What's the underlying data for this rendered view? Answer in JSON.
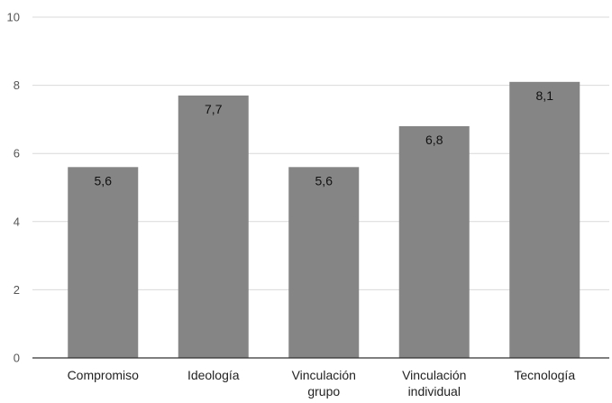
{
  "chart_data": {
    "type": "bar",
    "categories": [
      "Compromiso",
      "Ideología",
      "Vinculación grupo",
      "Vinculación individual",
      "Tecnología"
    ],
    "category_label_lines": [
      [
        "Compromiso"
      ],
      [
        "Ideología"
      ],
      [
        "Vinculación",
        "grupo"
      ],
      [
        "Vinculación",
        "individual"
      ],
      [
        "Tecnología"
      ]
    ],
    "values": [
      5.6,
      7.7,
      5.6,
      6.8,
      8.1
    ],
    "data_labels": [
      "5,6",
      "7,7",
      "5,6",
      "6,8",
      "8,1"
    ],
    "ylim": [
      0,
      10
    ],
    "yticks": [
      0,
      2,
      4,
      6,
      8,
      10
    ],
    "ytick_labels": [
      "0",
      "2",
      "4",
      "6",
      "8",
      "10"
    ],
    "grid": true,
    "legend": "none",
    "colors": {
      "bar": "#858585",
      "grid": "#d9d9d9",
      "axis": "#333333"
    }
  }
}
